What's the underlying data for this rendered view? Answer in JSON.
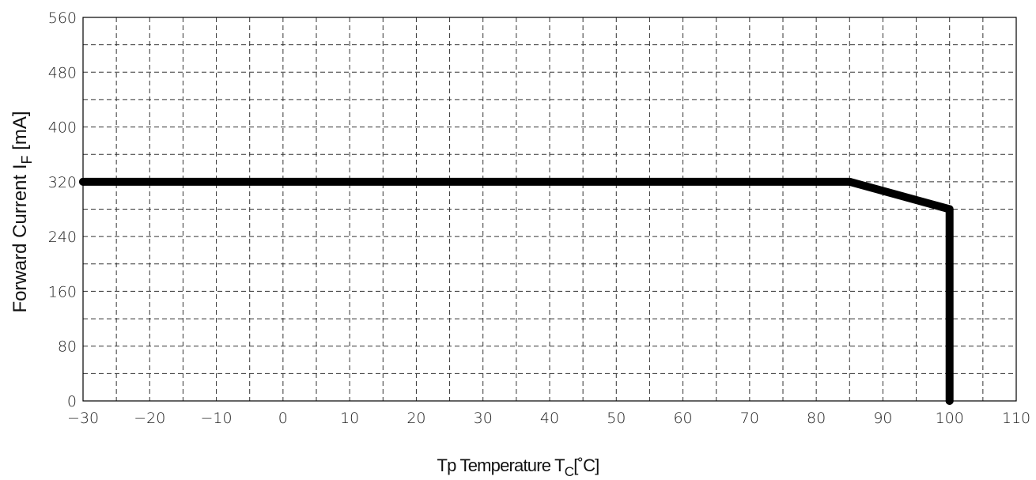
{
  "chart_data": {
    "type": "line",
    "xlabel": {
      "main": "Tp Temperature T",
      "sub": "C",
      "unit": "[˚C]"
    },
    "ylabel": {
      "main": "Forward Current I",
      "sub": "F",
      "unit": " [mA]"
    },
    "xlim": [
      -30,
      110
    ],
    "ylim": [
      0,
      560
    ],
    "x_ticks": [
      -30,
      -20,
      -10,
      0,
      10,
      20,
      30,
      40,
      50,
      60,
      70,
      80,
      90,
      100,
      110
    ],
    "x_tick_labels": [
      "−30",
      "−20",
      "−10",
      "0",
      "10",
      "20",
      "30",
      "40",
      "50",
      "60",
      "70",
      "80",
      "90",
      "100",
      "110"
    ],
    "y_ticks": [
      0,
      80,
      160,
      240,
      320,
      400,
      480,
      560
    ],
    "y_tick_labels": [
      "0",
      "80",
      "160",
      "240",
      "320",
      "400",
      "480",
      "560"
    ],
    "x_minor_step": 5,
    "y_minor_step": 40,
    "grid": true,
    "grid_style": "dashed",
    "series": [
      {
        "points": [
          [
            -30,
            320
          ],
          [
            85,
            320
          ],
          [
            100,
            280
          ],
          [
            100,
            0
          ]
        ],
        "color": "#000000"
      }
    ]
  }
}
